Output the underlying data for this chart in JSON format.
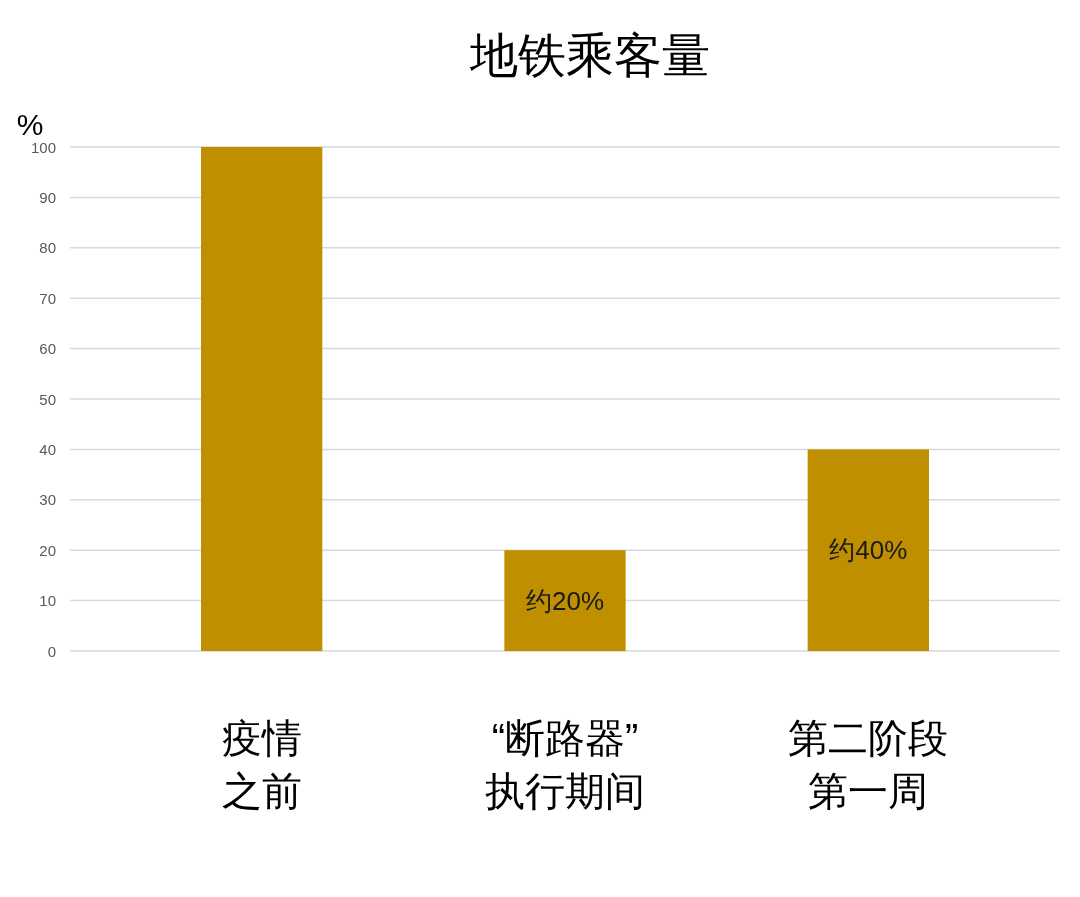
{
  "chart_data": {
    "type": "bar",
    "title": "地铁乘客量",
    "ylabel": "%",
    "categories": [
      "疫情之前",
      "“断路器”执行期间",
      "第二阶段第一周"
    ],
    "values": [
      100,
      20,
      40
    ],
    "color": "#bf8f00",
    "value_labels": [
      null,
      "约20%",
      "约40%"
    ],
    "ylim": [
      0,
      100
    ],
    "yticks": [
      0,
      10,
      20,
      30,
      40,
      50,
      60,
      70,
      80,
      90,
      100
    ],
    "grid": "y"
  }
}
